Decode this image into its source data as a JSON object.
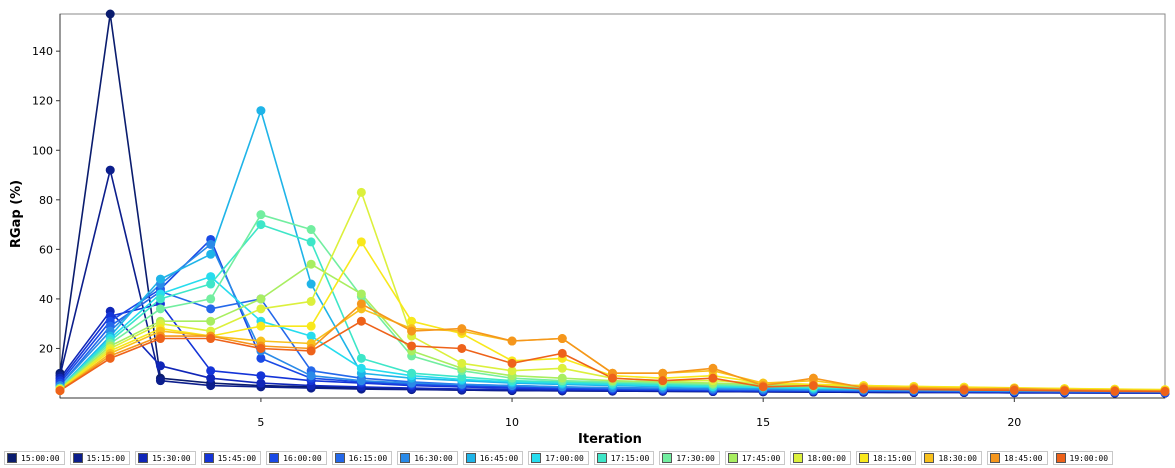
{
  "chart_data": {
    "type": "line",
    "title": "",
    "xlabel": "Iteration",
    "ylabel": "RGap (%)",
    "xlim": [
      1,
      23
    ],
    "ylim": [
      0,
      155
    ],
    "x_ticks": [
      5,
      10,
      15,
      20
    ],
    "y_ticks": [
      20,
      40,
      60,
      80,
      100,
      120,
      140
    ],
    "grid": false,
    "legend_position": "bottom",
    "series": [
      {
        "name": "15:00:00",
        "color": "#0a1c6e",
        "x": [
          1,
          2,
          3,
          4,
          5,
          6,
          7,
          8,
          9,
          10,
          11,
          12,
          13,
          14,
          15,
          16,
          17,
          18,
          19,
          20,
          21,
          22,
          23
        ],
        "y": [
          10,
          155,
          8,
          6,
          5,
          4.5,
          4,
          3.5,
          3.2,
          3,
          2.9,
          2.8,
          2.7,
          2.6,
          2.5,
          2.4,
          2.3,
          2.2,
          2.2,
          2.1,
          2.1,
          2.0,
          2.0
        ]
      },
      {
        "name": "15:15:00",
        "color": "#0c1e8c",
        "x": [
          1,
          2,
          3,
          4,
          5,
          6,
          7,
          8,
          9,
          10,
          11,
          12,
          13,
          14,
          15,
          16,
          17,
          18,
          19,
          20,
          21,
          22,
          23
        ],
        "y": [
          9,
          92,
          7,
          5,
          4.5,
          4,
          3.6,
          3.4,
          3.2,
          3,
          2.9,
          2.8,
          2.7,
          2.6,
          2.5,
          2.4,
          2.3,
          2.2,
          2.2,
          2.1,
          2.1,
          2.0,
          2.0
        ]
      },
      {
        "name": "15:30:00",
        "color": "#1026b8",
        "x": [
          1,
          2,
          3,
          4,
          5,
          6,
          7,
          8,
          9,
          10,
          11,
          12,
          13,
          14,
          15,
          16,
          17,
          18,
          19,
          20,
          21,
          22,
          23
        ],
        "y": [
          8,
          35,
          13,
          8,
          6,
          5,
          4.5,
          4,
          3.6,
          3.4,
          3.2,
          3,
          2.9,
          2.8,
          2.7,
          2.6,
          2.5,
          2.4,
          2.3,
          2.2,
          2.1,
          2.1,
          2.0
        ]
      },
      {
        "name": "15:45:00",
        "color": "#1434d8",
        "x": [
          1,
          2,
          3,
          4,
          5,
          6,
          7,
          8,
          9,
          10,
          11,
          12,
          13,
          14,
          15,
          16,
          17,
          18,
          19,
          20,
          21,
          22,
          23
        ],
        "y": [
          7,
          33,
          38,
          11,
          9,
          7,
          6,
          5,
          4.5,
          4,
          3.6,
          3.4,
          3.2,
          3,
          2.9,
          2.8,
          2.7,
          2.6,
          2.5,
          2.4,
          2.3,
          2.2,
          2.1
        ]
      },
      {
        "name": "16:00:00",
        "color": "#1a4ae6",
        "x": [
          1,
          2,
          3,
          4,
          5,
          6,
          7,
          8,
          9,
          10,
          11,
          12,
          13,
          14,
          15,
          16,
          17,
          18,
          19,
          20,
          21,
          22,
          23
        ],
        "y": [
          6,
          31,
          44,
          64,
          16,
          8,
          6.5,
          5.5,
          5,
          4.5,
          4,
          3.6,
          3.4,
          3.2,
          3,
          2.9,
          2.8,
          2.7,
          2.6,
          2.5,
          2.4,
          2.3,
          2.2
        ]
      },
      {
        "name": "16:15:00",
        "color": "#2468ea",
        "x": [
          1,
          2,
          3,
          4,
          5,
          6,
          7,
          8,
          9,
          10,
          11,
          12,
          13,
          14,
          15,
          16,
          17,
          18,
          19,
          20,
          21,
          22,
          23
        ],
        "y": [
          5,
          29,
          43,
          36,
          40,
          11,
          8,
          6.5,
          5.5,
          5,
          4.5,
          4,
          3.7,
          3.5,
          3.3,
          3.1,
          3,
          2.9,
          2.8,
          2.7,
          2.6,
          2.5,
          2.4
        ]
      },
      {
        "name": "16:30:00",
        "color": "#2a8ae8",
        "x": [
          1,
          2,
          3,
          4,
          5,
          6,
          7,
          8,
          9,
          10,
          11,
          12,
          13,
          14,
          15,
          16,
          17,
          18,
          19,
          20,
          21,
          22,
          23
        ],
        "y": [
          5,
          27,
          46,
          62,
          19,
          9,
          7,
          6,
          5.5,
          5,
          4.5,
          4.2,
          4,
          3.7,
          3.5,
          3.3,
          3.1,
          3,
          2.9,
          2.8,
          2.7,
          2.6,
          2.5
        ]
      },
      {
        "name": "16:45:00",
        "color": "#1fb4e8",
        "x": [
          1,
          2,
          3,
          4,
          5,
          6,
          7,
          8,
          9,
          10,
          11,
          12,
          13,
          14,
          15,
          16,
          17,
          18,
          19,
          20,
          21,
          22,
          23
        ],
        "y": [
          4,
          25,
          48,
          58,
          116,
          46,
          10,
          8,
          7,
          6,
          5.5,
          5,
          4.6,
          4.3,
          4,
          3.7,
          3.5,
          3.3,
          3.1,
          3,
          2.9,
          2.8,
          2.7
        ]
      },
      {
        "name": "17:00:00",
        "color": "#26dcee",
        "x": [
          1,
          2,
          3,
          4,
          5,
          6,
          7,
          8,
          9,
          10,
          11,
          12,
          13,
          14,
          15,
          16,
          17,
          18,
          19,
          20,
          21,
          22,
          23
        ],
        "y": [
          4,
          24,
          42,
          49,
          31,
          25,
          12,
          9,
          7.5,
          6.5,
          6,
          5.5,
          5,
          4.6,
          4.3,
          4,
          3.7,
          3.5,
          3.3,
          3.1,
          3,
          2.9,
          2.8
        ]
      },
      {
        "name": "17:15:00",
        "color": "#3ee6c8",
        "x": [
          1,
          2,
          3,
          4,
          5,
          6,
          7,
          8,
          9,
          10,
          11,
          12,
          13,
          14,
          15,
          16,
          17,
          18,
          19,
          20,
          21,
          22,
          23
        ],
        "y": [
          4,
          23,
          40,
          46,
          70,
          63,
          16,
          10,
          8.5,
          7,
          6.5,
          6,
          5.5,
          5,
          4.6,
          4.3,
          4,
          3.8,
          3.6,
          3.4,
          3.2,
          3,
          2.9
        ]
      },
      {
        "name": "17:30:00",
        "color": "#72eea0",
        "x": [
          1,
          2,
          3,
          4,
          5,
          6,
          7,
          8,
          9,
          10,
          11,
          12,
          13,
          14,
          15,
          16,
          17,
          18,
          19,
          20,
          21,
          22,
          23
        ],
        "y": [
          4,
          22,
          36,
          40,
          74,
          68,
          41,
          17,
          11,
          8,
          7,
          6.5,
          6,
          5.5,
          5,
          4.6,
          4.3,
          4,
          3.8,
          3.6,
          3.4,
          3.2,
          3
        ]
      },
      {
        "name": "17:45:00",
        "color": "#a8ee60",
        "x": [
          1,
          2,
          3,
          4,
          5,
          6,
          7,
          8,
          9,
          10,
          11,
          12,
          13,
          14,
          15,
          16,
          17,
          18,
          19,
          20,
          21,
          22,
          23
        ],
        "y": [
          3.5,
          21,
          31,
          31,
          40,
          54,
          42,
          19,
          12,
          9,
          8,
          7,
          6.5,
          6,
          5.5,
          5,
          4.6,
          4.3,
          4,
          3.8,
          3.6,
          3.4,
          3.2
        ]
      },
      {
        "name": "18:00:00",
        "color": "#dcf03c",
        "x": [
          1,
          2,
          3,
          4,
          5,
          6,
          7,
          8,
          9,
          10,
          11,
          12,
          13,
          14,
          15,
          16,
          17,
          18,
          19,
          20,
          21,
          22,
          23
        ],
        "y": [
          3.5,
          20,
          30,
          27,
          36,
          39,
          83,
          25,
          14,
          11,
          12,
          8,
          7,
          7,
          6,
          5.5,
          5,
          4.6,
          4.3,
          4,
          3.8,
          3.5,
          3.3
        ]
      },
      {
        "name": "18:15:00",
        "color": "#f8e81c",
        "x": [
          1,
          2,
          3,
          4,
          5,
          6,
          7,
          8,
          9,
          10,
          11,
          12,
          13,
          14,
          15,
          16,
          17,
          18,
          19,
          20,
          21,
          22,
          23
        ],
        "y": [
          3.5,
          19,
          28,
          25,
          29,
          29,
          63,
          31,
          26,
          15,
          16,
          9,
          8,
          9,
          6,
          5.5,
          5,
          4.7,
          4.4,
          4.1,
          3.8,
          3.6,
          3.4
        ]
      },
      {
        "name": "18:30:00",
        "color": "#f8c01c",
        "x": [
          1,
          2,
          3,
          4,
          5,
          6,
          7,
          8,
          9,
          10,
          11,
          12,
          13,
          14,
          15,
          16,
          17,
          18,
          19,
          20,
          21,
          22,
          23
        ],
        "y": [
          3,
          18,
          27,
          25,
          23,
          22,
          36,
          28,
          27,
          23,
          24,
          10,
          10,
          11,
          6,
          7,
          4.5,
          4.2,
          3.9,
          3.7,
          3.4,
          3.2,
          3
        ]
      },
      {
        "name": "18:45:00",
        "color": "#f5961c",
        "x": [
          1,
          2,
          3,
          4,
          5,
          6,
          7,
          8,
          9,
          10,
          11,
          12,
          13,
          14,
          15,
          16,
          17,
          18,
          19,
          20,
          21,
          22,
          23
        ],
        "y": [
          3,
          17,
          25,
          25,
          21,
          20,
          38,
          27,
          28,
          23,
          24,
          10,
          10,
          12,
          5,
          8,
          4.2,
          3.9,
          3.6,
          3.8,
          3.2,
          3,
          2.8
        ]
      },
      {
        "name": "19:00:00",
        "color": "#ee621a",
        "x": [
          1,
          2,
          3,
          4,
          5,
          6,
          7,
          8,
          9,
          10,
          11,
          12,
          13,
          14,
          15,
          16,
          17,
          18,
          19,
          20,
          21,
          22,
          23
        ],
        "y": [
          3,
          16,
          24,
          24,
          20,
          19,
          31,
          21,
          20,
          14,
          18,
          8,
          7,
          8,
          4.5,
          5,
          3.6,
          3.4,
          3.2,
          3.1,
          2.9,
          2.7,
          2.6
        ]
      }
    ]
  }
}
